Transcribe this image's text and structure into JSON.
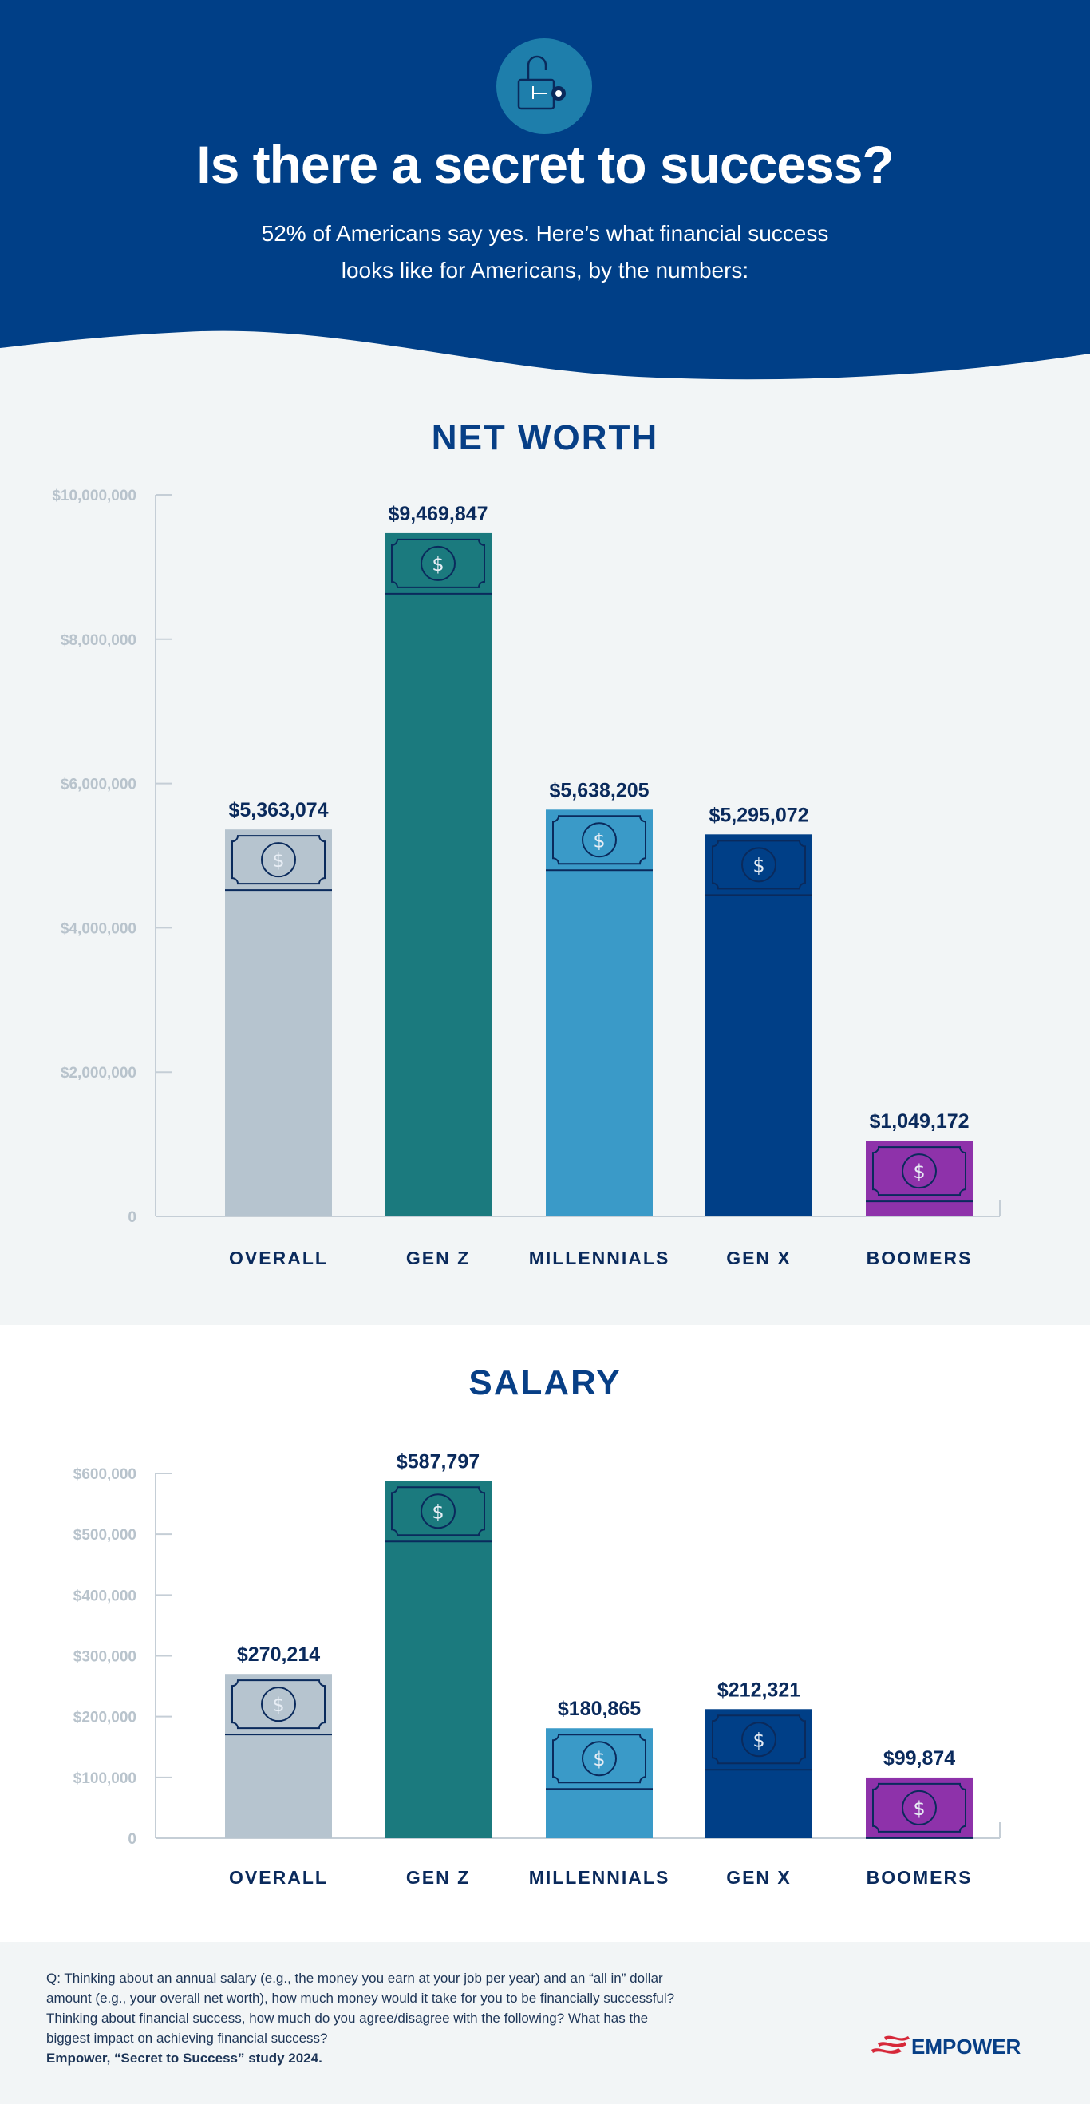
{
  "header": {
    "icon": "lock-key-icon",
    "title": "Is there a secret to success?",
    "subtitle_line1": "52% of Americans say yes. Here’s what financial success",
    "subtitle_line2": "looks like for Americans, by the numbers:"
  },
  "colors": {
    "header_bg": "#003f87",
    "icon_circle": "#1e7eab",
    "text_dark": "#0a2a5c"
  },
  "chart_data": [
    {
      "type": "bar",
      "title": "NET WORTH",
      "categories": [
        "OVERALL",
        "GEN Z",
        "MILLENNIALS",
        "GEN X",
        "BOOMERS"
      ],
      "values": [
        5363074,
        9469847,
        5638205,
        5295072,
        1049172
      ],
      "value_labels": [
        "$5,363,074",
        "$9,469,847",
        "$5,638,205",
        "$5,295,072",
        "$1,049,172"
      ],
      "colors": [
        "#b6c4cf",
        "#1b7a7e",
        "#3a9ac8",
        "#003f87",
        "#8e32aa"
      ],
      "ylim": [
        0,
        10000000
      ],
      "yticks": [
        0,
        2000000,
        4000000,
        6000000,
        8000000,
        10000000
      ],
      "ytick_labels": [
        "0",
        "$2,000,000",
        "$4,000,000",
        "$6,000,000",
        "$8,000,000",
        "$10,000,000"
      ],
      "grid": false
    },
    {
      "type": "bar",
      "title": "SALARY",
      "categories": [
        "OVERALL",
        "GEN Z",
        "MILLENNIALS",
        "GEN X",
        "BOOMERS"
      ],
      "values": [
        270214,
        587797,
        180865,
        212321,
        99874
      ],
      "value_labels": [
        "$270,214",
        "$587,797",
        "$180,865",
        "$212,321",
        "$99,874"
      ],
      "colors": [
        "#b6c4cf",
        "#1b7a7e",
        "#3a9ac8",
        "#003f87",
        "#8e32aa"
      ],
      "ylim": [
        0,
        600000
      ],
      "yticks": [
        0,
        100000,
        200000,
        300000,
        400000,
        500000,
        600000
      ],
      "ytick_labels": [
        "0",
        "$100,000",
        "$200,000",
        "$300,000",
        "$400,000",
        "$500,000",
        "$600,000"
      ],
      "grid": false
    }
  ],
  "footer": {
    "question": "Q: Thinking about an annual salary (e.g., the money you earn at your job per year) and an “all in” dollar amount (e.g., your overall net worth), how much money would it take for you to be financially successful? Thinking about financial success, how much do you agree/disagree with the following? What has the biggest impact on achieving financial success?",
    "source": "Empower, “Secret to Success” study 2024.",
    "logo_text": "EMPOWER"
  }
}
